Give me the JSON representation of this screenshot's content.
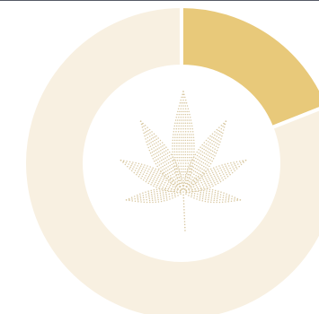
{
  "chart_data": {
    "type": "pie",
    "style": "donut",
    "series": [
      {
        "value": 19
      },
      {
        "value": 81
      }
    ],
    "colors": [
      "#e8c97a",
      "#f8f0e1"
    ],
    "center_icon": "cannabis-leaf-icon",
    "center_icon_color": "#d9c9a3",
    "grid": false,
    "legend": "none"
  }
}
